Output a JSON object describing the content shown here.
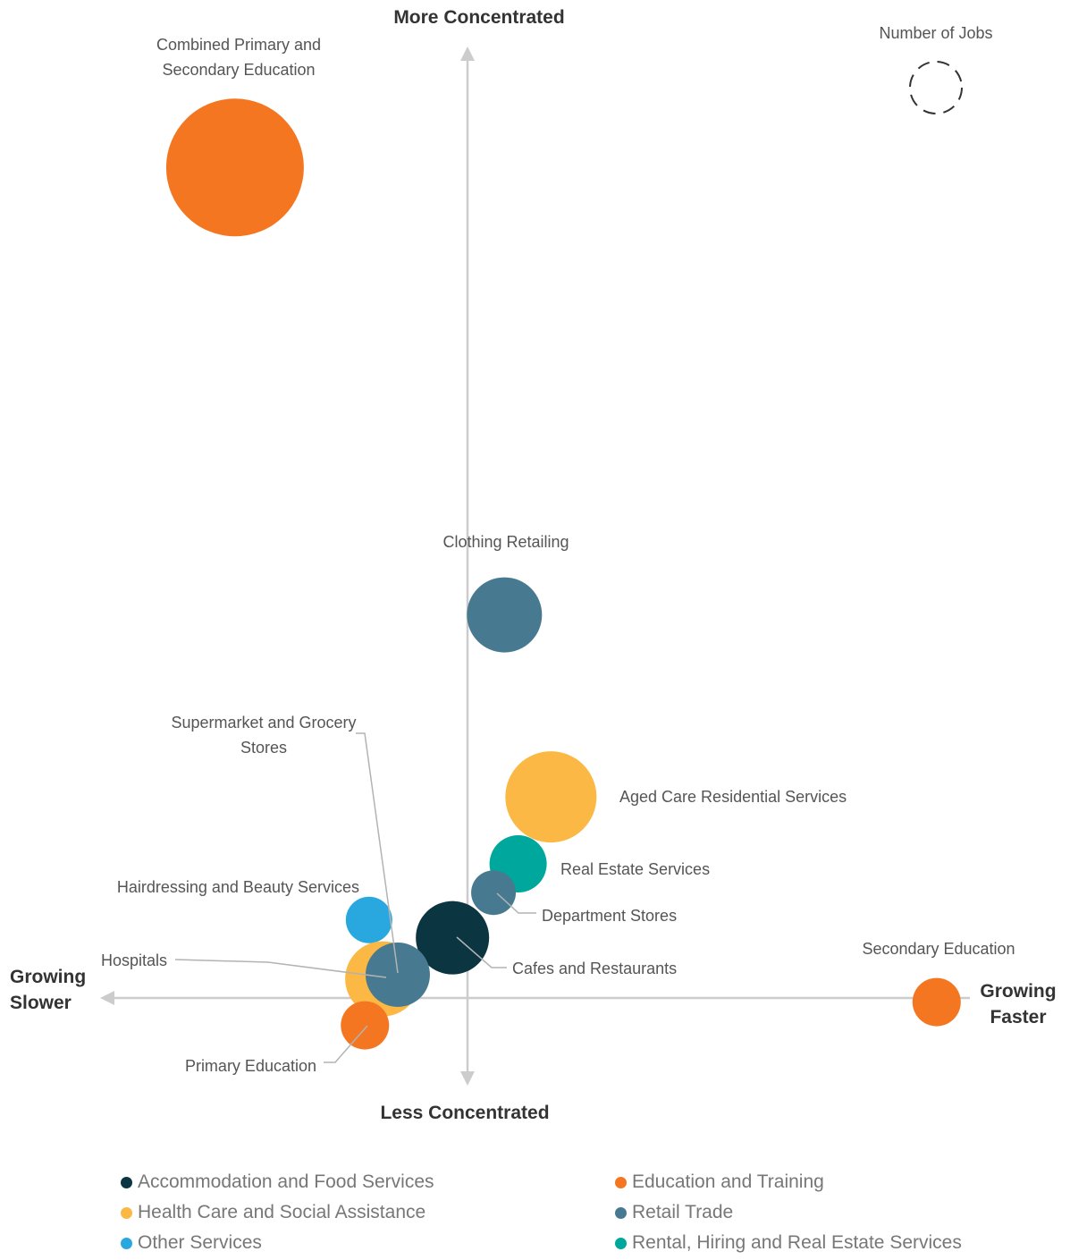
{
  "chart_data": {
    "type": "scatter",
    "variant": "bubble",
    "axes": {
      "top": "More Concentrated",
      "bottom": "Less Concentrated",
      "left": [
        "Growing",
        "Slower"
      ],
      "right": [
        "Growing",
        "Faster"
      ]
    },
    "size_legend": "Number of Jobs",
    "categories": [
      {
        "name": "Accommodation and Food Services",
        "color": "#0b3540"
      },
      {
        "name": "Education and Training",
        "color": "#f47621"
      },
      {
        "name": "Health Care and Social Assistance",
        "color": "#fbb844"
      },
      {
        "name": "Retail Trade",
        "color": "#477a91"
      },
      {
        "name": "Other Services",
        "color": "#29a8e0"
      },
      {
        "name": "Rental, Hiring and Real Estate Services",
        "color": "#00a79d"
      }
    ],
    "points": [
      {
        "label": [
          "Combined Primary and",
          "Secondary Education"
        ],
        "category": "Education and Training",
        "x": -1.7,
        "y": 6.07,
        "size": 77
      },
      {
        "label": [
          "Clothing Retailing"
        ],
        "category": "Retail Trade",
        "x": 0.27,
        "y": 2.8,
        "size": 42
      },
      {
        "label": [
          "Aged Care Residential Services"
        ],
        "category": "Health Care and Social Assistance",
        "x": 0.61,
        "y": 1.47,
        "size": 51
      },
      {
        "label": [
          "Real Estate Services"
        ],
        "category": "Rental, Hiring and Real Estate Services",
        "x": 0.37,
        "y": 0.98,
        "size": 32
      },
      {
        "label": [
          "Department Stores"
        ],
        "category": "Retail Trade",
        "x": 0.19,
        "y": 0.77,
        "size": 25
      },
      {
        "label": [
          "Cafes and Restaurants"
        ],
        "category": "Accommodation and Food Services",
        "x": -0.11,
        "y": 0.44,
        "size": 41
      },
      {
        "label": [
          "Hairdressing and Beauty Services"
        ],
        "category": "Other Services",
        "x": -0.72,
        "y": 0.57,
        "size": 26
      },
      {
        "label": [
          "Hospitals"
        ],
        "category": "Health Care and Social Assistance",
        "x": -0.62,
        "y": 0.14,
        "size": 42
      },
      {
        "label": [
          "Supermarket and Grocery",
          "Stores"
        ],
        "category": "Retail Trade",
        "x": -0.51,
        "y": 0.17,
        "size": 36
      },
      {
        "label": [
          "Primary Education"
        ],
        "category": "Education and Training",
        "x": -0.75,
        "y": -0.2,
        "size": 27
      },
      {
        "label": [
          "Secondary Education"
        ],
        "category": "Education and Training",
        "x": 3.43,
        "y": -0.03,
        "size": 27
      }
    ]
  }
}
